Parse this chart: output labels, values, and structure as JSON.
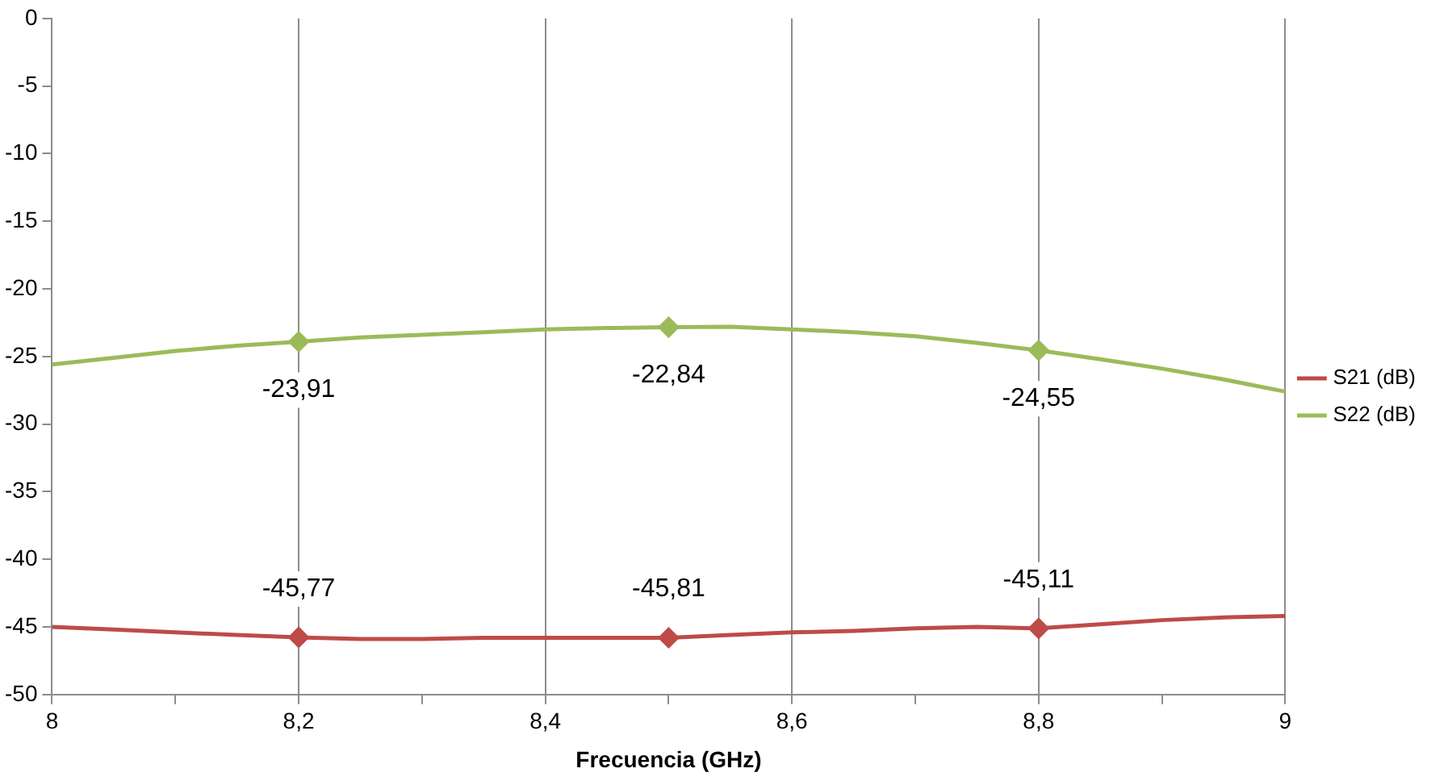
{
  "chart_data": {
    "type": "line",
    "xlabel": "Frecuencia (GHz)",
    "x": [
      8,
      8.05,
      8.1,
      8.15,
      8.2,
      8.25,
      8.3,
      8.35,
      8.4,
      8.45,
      8.5,
      8.55,
      8.6,
      8.65,
      8.7,
      8.75,
      8.8,
      8.85,
      8.9,
      8.95,
      9
    ],
    "series": [
      {
        "name": "S21 (dB)",
        "color": "#be4b48",
        "values": [
          -45,
          -45.2,
          -45.4,
          -45.6,
          -45.77,
          -45.9,
          -45.9,
          -45.8,
          -45.8,
          -45.8,
          -45.81,
          -45.6,
          -45.4,
          -45.3,
          -45.1,
          -45,
          -45.11,
          -44.8,
          -44.5,
          -44.3,
          -44.2
        ],
        "value_labels": [
          null,
          null,
          null,
          null,
          "-45,77",
          null,
          null,
          null,
          null,
          null,
          "-45,81",
          null,
          null,
          null,
          null,
          null,
          "-45,11",
          null,
          null,
          null,
          null
        ]
      },
      {
        "name": "S22 (dB)",
        "color": "#9bbb59",
        "values": [
          -25.6,
          -25.1,
          -24.6,
          -24.2,
          -23.91,
          -23.6,
          -23.4,
          -23.2,
          -23,
          -22.9,
          -22.84,
          -22.8,
          -23,
          -23.2,
          -23.5,
          -24,
          -24.55,
          -25.2,
          -25.9,
          -26.7,
          -27.6
        ],
        "value_labels": [
          null,
          null,
          null,
          null,
          "-23,91",
          null,
          null,
          null,
          null,
          null,
          "-22,84",
          null,
          null,
          null,
          null,
          null,
          "-24,55",
          null,
          null,
          null,
          null
        ]
      }
    ],
    "xlim": [
      8,
      9
    ],
    "xticks": [
      8,
      {
        "value": 8.1,
        "label": null
      },
      {
        "value": 8.2,
        "label": "8,2"
      },
      {
        "value": 8.3,
        "label": null
      },
      {
        "value": 8.4,
        "label": "8,4"
      },
      {
        "value": 8.5,
        "label": null
      },
      {
        "value": 8.6,
        "label": "8,6"
      },
      {
        "value": 8.7,
        "label": null
      },
      {
        "value": 8.8,
        "label": "8,8"
      },
      {
        "value": 8.9,
        "label": null
      },
      9
    ],
    "ylim": [
      -50,
      0
    ],
    "yticks": [
      -50,
      -45,
      -40,
      -35,
      -30,
      -25,
      -20,
      -15,
      -10,
      -5,
      0
    ],
    "grid": "x",
    "legend": "right",
    "line_style": "solid"
  }
}
